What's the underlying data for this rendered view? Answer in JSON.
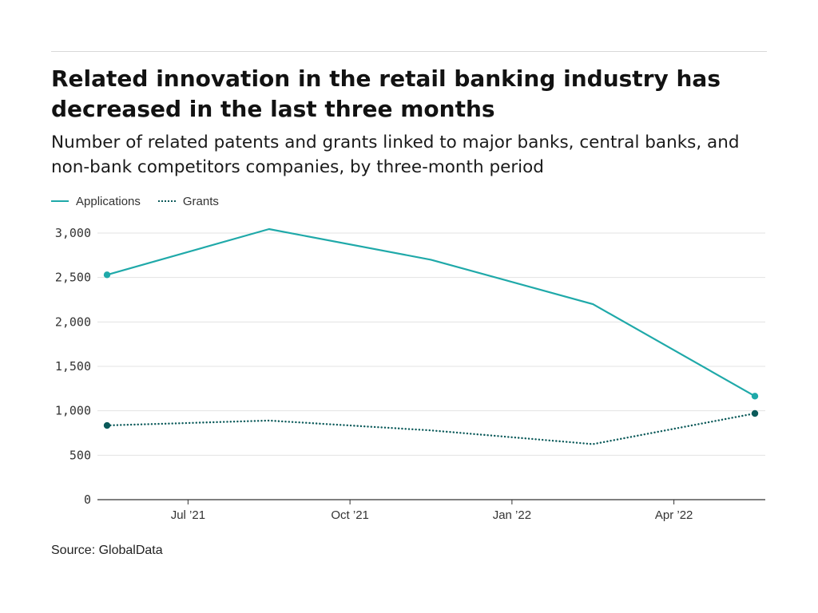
{
  "title": "Related innovation in the retail banking industry has decreased in the last three months",
  "subtitle": "Number of related patents and grants linked to major banks, central banks, and non-bank competitors companies, by three-month period",
  "source": "Source: GlobalData",
  "colors": {
    "applications": "#1fa9a9",
    "grants": "#0b5a5a",
    "grid": "#e3e3e3",
    "axis": "#333333"
  },
  "chart_data": {
    "type": "line",
    "x": [
      "2021-04",
      "2021-07",
      "2021-10",
      "2022-01",
      "2022-04"
    ],
    "x_tick_labels": [
      "Jul ’21",
      "Oct ’21",
      "Jan ’22",
      "Apr ’22"
    ],
    "series": [
      {
        "name": "Applications",
        "style": "solid",
        "values": [
          2530,
          3045,
          2700,
          2200,
          1165
        ]
      },
      {
        "name": "Grants",
        "style": "dotted",
        "values": [
          835,
          890,
          780,
          625,
          970
        ]
      }
    ],
    "y_ticks": [
      {
        "value": 0,
        "label": "0"
      },
      {
        "value": 500,
        "label": "500"
      },
      {
        "value": 1000,
        "label": "1,000"
      },
      {
        "value": 1500,
        "label": "1,500"
      },
      {
        "value": 2000,
        "label": "2,000"
      },
      {
        "value": 2500,
        "label": "2,500"
      },
      {
        "value": 3000,
        "label": "3,000"
      }
    ],
    "ylim": [
      0,
      3000
    ],
    "grid": true,
    "legend_position": "top-left",
    "endpoint_markers": "first-and-last"
  }
}
